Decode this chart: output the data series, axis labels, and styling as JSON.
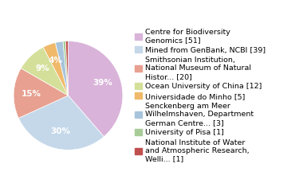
{
  "labels": [
    "Centre for Biodiversity\nGenomics [51]",
    "Mined from GenBank, NCBI [39]",
    "Smithsonian Institution,\nNational Museum of Natural\nHistor... [20]",
    "Ocean University of China [12]",
    "Universidade do Minho [5]",
    "Senckenberg am Meer\nWilhelmshaven, Department\nGerman Centre... [3]",
    "University of Pisa [1]",
    "National Institute of Water\nand Atmospheric Research,\nWelli... [1]"
  ],
  "values": [
    51,
    39,
    20,
    12,
    5,
    3,
    1,
    1
  ],
  "colors": [
    "#d9b3d9",
    "#c5d8ea",
    "#e8a090",
    "#d4e09a",
    "#f0b96a",
    "#a8c4dc",
    "#a8cc98",
    "#c0504d"
  ],
  "background_color": "#ffffff",
  "pct_threshold": 3.5,
  "font_size": 7.5,
  "legend_fontsize": 6.8
}
